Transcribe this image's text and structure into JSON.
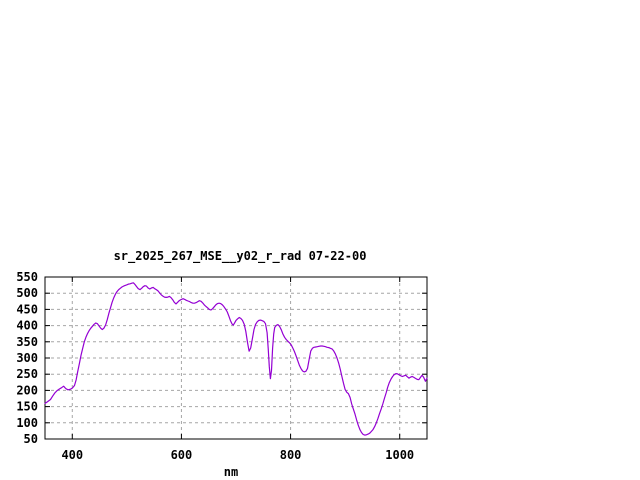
{
  "colors": {
    "background": "#ffffff",
    "frame": "#000000",
    "grid": "#a6a6a6",
    "text": "#000000",
    "line": "#9400d3"
  },
  "chart_data": {
    "type": "line",
    "title": "sr_2025_267_MSE__y02_r_rad 07-22-00",
    "xlabel": "nm",
    "ylabel": "",
    "xlim": [
      350,
      1050
    ],
    "ylim": [
      50,
      550
    ],
    "xticks": [
      400,
      600,
      800,
      1000
    ],
    "yticks": [
      50,
      100,
      150,
      200,
      250,
      300,
      350,
      400,
      450,
      500,
      550
    ],
    "grid": true,
    "legend_position": "none",
    "series": [
      {
        "name": "sr_2025_267_MSE__y02_r_rad",
        "color": "#9400d3",
        "points": [
          [
            350,
            160
          ],
          [
            353,
            163
          ],
          [
            356,
            167
          ],
          [
            360,
            172
          ],
          [
            364,
            182
          ],
          [
            368,
            192
          ],
          [
            372,
            199
          ],
          [
            376,
            204
          ],
          [
            380,
            208
          ],
          [
            384,
            213
          ],
          [
            388,
            206
          ],
          [
            392,
            202
          ],
          [
            396,
            203
          ],
          [
            400,
            207
          ],
          [
            404,
            215
          ],
          [
            407,
            232
          ],
          [
            410,
            258
          ],
          [
            413,
            283
          ],
          [
            416,
            308
          ],
          [
            419,
            330
          ],
          [
            422,
            350
          ],
          [
            425,
            364
          ],
          [
            428,
            376
          ],
          [
            431,
            385
          ],
          [
            434,
            392
          ],
          [
            437,
            398
          ],
          [
            440,
            404
          ],
          [
            443,
            408
          ],
          [
            446,
            406
          ],
          [
            449,
            399
          ],
          [
            452,
            392
          ],
          [
            455,
            388
          ],
          [
            458,
            392
          ],
          [
            461,
            402
          ],
          [
            464,
            418
          ],
          [
            467,
            437
          ],
          [
            470,
            455
          ],
          [
            473,
            472
          ],
          [
            476,
            486
          ],
          [
            479,
            497
          ],
          [
            482,
            505
          ],
          [
            485,
            511
          ],
          [
            488,
            515
          ],
          [
            491,
            519
          ],
          [
            494,
            522
          ],
          [
            497,
            524
          ],
          [
            500,
            526
          ],
          [
            503,
            528
          ],
          [
            506,
            529
          ],
          [
            509,
            531
          ],
          [
            512,
            532
          ],
          [
            515,
            527
          ],
          [
            518,
            520
          ],
          [
            521,
            514
          ],
          [
            524,
            511
          ],
          [
            527,
            515
          ],
          [
            530,
            520
          ],
          [
            533,
            523
          ],
          [
            536,
            522
          ],
          [
            539,
            516
          ],
          [
            542,
            513
          ],
          [
            545,
            516
          ],
          [
            548,
            518
          ],
          [
            551,
            514
          ],
          [
            554,
            511
          ],
          [
            557,
            507
          ],
          [
            560,
            501
          ],
          [
            563,
            495
          ],
          [
            566,
            491
          ],
          [
            569,
            488
          ],
          [
            572,
            487
          ],
          [
            575,
            488
          ],
          [
            578,
            490
          ],
          [
            581,
            486
          ],
          [
            584,
            480
          ],
          [
            587,
            472
          ],
          [
            590,
            467
          ],
          [
            593,
            472
          ],
          [
            596,
            477
          ],
          [
            600,
            481
          ],
          [
            603,
            483
          ],
          [
            606,
            481
          ],
          [
            609,
            478
          ],
          [
            612,
            476
          ],
          [
            615,
            474
          ],
          [
            618,
            471
          ],
          [
            621,
            469
          ],
          [
            624,
            469
          ],
          [
            627,
            471
          ],
          [
            630,
            474
          ],
          [
            633,
            477
          ],
          [
            636,
            475
          ],
          [
            639,
            470
          ],
          [
            642,
            464
          ],
          [
            645,
            459
          ],
          [
            648,
            455
          ],
          [
            651,
            450
          ],
          [
            654,
            448
          ],
          [
            657,
            452
          ],
          [
            660,
            458
          ],
          [
            663,
            464
          ],
          [
            666,
            468
          ],
          [
            669,
            469
          ],
          [
            672,
            468
          ],
          [
            675,
            464
          ],
          [
            678,
            458
          ],
          [
            681,
            451
          ],
          [
            684,
            442
          ],
          [
            687,
            429
          ],
          [
            690,
            415
          ],
          [
            693,
            404
          ],
          [
            695,
            402
          ],
          [
            697,
            407
          ],
          [
            700,
            416
          ],
          [
            703,
            421
          ],
          [
            706,
            425
          ],
          [
            709,
            422
          ],
          [
            712,
            416
          ],
          [
            715,
            404
          ],
          [
            718,
            382
          ],
          [
            721,
            348
          ],
          [
            724,
            321
          ],
          [
            727,
            331
          ],
          [
            730,
            360
          ],
          [
            733,
            388
          ],
          [
            736,
            404
          ],
          [
            739,
            412
          ],
          [
            742,
            416
          ],
          [
            745,
            417
          ],
          [
            748,
            415
          ],
          [
            751,
            413
          ],
          [
            754,
            406
          ],
          [
            757,
            378
          ],
          [
            759,
            330
          ],
          [
            761,
            273
          ],
          [
            763,
            236
          ],
          [
            765,
            262
          ],
          [
            767,
            330
          ],
          [
            769,
            374
          ],
          [
            771,
            394
          ],
          [
            774,
            401
          ],
          [
            777,
            403
          ],
          [
            780,
            397
          ],
          [
            783,
            387
          ],
          [
            786,
            374
          ],
          [
            789,
            364
          ],
          [
            792,
            357
          ],
          [
            795,
            352
          ],
          [
            798,
            347
          ],
          [
            801,
            341
          ],
          [
            804,
            331
          ],
          [
            807,
            320
          ],
          [
            810,
            307
          ],
          [
            813,
            292
          ],
          [
            816,
            278
          ],
          [
            819,
            268
          ],
          [
            822,
            260
          ],
          [
            825,
            257
          ],
          [
            828,
            259
          ],
          [
            831,
            268
          ],
          [
            834,
            295
          ],
          [
            837,
            322
          ],
          [
            840,
            330
          ],
          [
            843,
            333
          ],
          [
            846,
            334
          ],
          [
            849,
            335
          ],
          [
            852,
            336
          ],
          [
            855,
            337
          ],
          [
            858,
            337
          ],
          [
            861,
            336
          ],
          [
            864,
            335
          ],
          [
            867,
            333
          ],
          [
            870,
            332
          ],
          [
            873,
            330
          ],
          [
            876,
            328
          ],
          [
            879,
            322
          ],
          [
            882,
            313
          ],
          [
            885,
            300
          ],
          [
            888,
            285
          ],
          [
            891,
            266
          ],
          [
            894,
            243
          ],
          [
            897,
            222
          ],
          [
            900,
            203
          ],
          [
            903,
            194
          ],
          [
            906,
            190
          ],
          [
            909,
            178
          ],
          [
            912,
            158
          ],
          [
            915,
            143
          ],
          [
            918,
            127
          ],
          [
            921,
            109
          ],
          [
            924,
            93
          ],
          [
            927,
            79
          ],
          [
            930,
            70
          ],
          [
            933,
            64
          ],
          [
            936,
            62
          ],
          [
            939,
            63
          ],
          [
            942,
            65
          ],
          [
            945,
            68
          ],
          [
            948,
            73
          ],
          [
            951,
            79
          ],
          [
            954,
            88
          ],
          [
            957,
            99
          ],
          [
            960,
            113
          ],
          [
            963,
            128
          ],
          [
            966,
            143
          ],
          [
            969,
            158
          ],
          [
            972,
            175
          ],
          [
            975,
            192
          ],
          [
            978,
            210
          ],
          [
            981,
            224
          ],
          [
            984,
            235
          ],
          [
            987,
            243
          ],
          [
            990,
            249
          ],
          [
            993,
            252
          ],
          [
            996,
            251
          ],
          [
            999,
            248
          ],
          [
            1002,
            245
          ],
          [
            1005,
            243
          ],
          [
            1008,
            245
          ],
          [
            1011,
            247
          ],
          [
            1014,
            242
          ],
          [
            1017,
            238
          ],
          [
            1020,
            241
          ],
          [
            1023,
            243
          ],
          [
            1026,
            240
          ],
          [
            1029,
            237
          ],
          [
            1032,
            234
          ],
          [
            1035,
            233
          ],
          [
            1038,
            240
          ],
          [
            1041,
            247
          ],
          [
            1044,
            240
          ],
          [
            1047,
            228
          ],
          [
            1050,
            238
          ]
        ]
      }
    ]
  }
}
